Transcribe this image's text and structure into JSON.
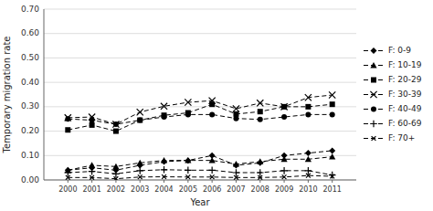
{
  "chart_data": {
    "type": "line",
    "x": [
      2000,
      2001,
      2002,
      2003,
      2004,
      2005,
      2006,
      2007,
      2008,
      2009,
      2010,
      2011
    ],
    "xlim": [
      1999,
      2012
    ],
    "xticks": [
      2000,
      2001,
      2002,
      2003,
      2004,
      2005,
      2006,
      2007,
      2008,
      2009,
      2010,
      2011
    ],
    "series": [
      {
        "name": "F: 0-9",
        "marker": "diamond",
        "values": [
          0.04,
          0.05,
          0.04,
          0.06,
          0.075,
          0.08,
          0.1,
          0.06,
          0.07,
          0.1,
          0.11,
          0.12
        ]
      },
      {
        "name": "F: 10-19",
        "marker": "triangle",
        "values": [
          0.04,
          0.06,
          0.055,
          0.07,
          0.08,
          0.08,
          0.08,
          0.065,
          0.075,
          0.085,
          0.085,
          0.095
        ]
      },
      {
        "name": "F: 20-29",
        "marker": "square",
        "values": [
          0.205,
          0.225,
          0.2,
          0.245,
          0.265,
          0.275,
          0.31,
          0.27,
          0.28,
          0.3,
          0.3,
          0.31
        ]
      },
      {
        "name": "F: 30-39",
        "marker": "x",
        "values": [
          0.255,
          0.258,
          0.228,
          0.278,
          0.302,
          0.318,
          0.325,
          0.292,
          0.315,
          0.3,
          0.338,
          0.348
        ]
      },
      {
        "name": "F: 40-49",
        "marker": "circle",
        "values": [
          0.25,
          0.245,
          0.228,
          0.245,
          0.258,
          0.268,
          0.268,
          0.252,
          0.248,
          0.258,
          0.268,
          0.268
        ]
      },
      {
        "name": "F: 60-69",
        "marker": "plus",
        "values": [
          0.03,
          0.035,
          0.025,
          0.038,
          0.042,
          0.04,
          0.04,
          0.03,
          0.03,
          0.038,
          0.038,
          0.02
        ]
      },
      {
        "name": "F: 70+",
        "marker": "small-x",
        "values": [
          0.01,
          0.01,
          0.005,
          0.012,
          0.013,
          0.012,
          0.012,
          0.01,
          0.01,
          0.012,
          0.018,
          0.015
        ]
      }
    ],
    "color": "#000000",
    "line_style": "dashed",
    "ylabel": "Temporary migration rate",
    "xlabel": "Year",
    "ylim": [
      0.0,
      0.7
    ],
    "yticks": [
      {
        "value": 0.0,
        "label": "0.00"
      },
      {
        "value": 0.1,
        "label": "0.10"
      },
      {
        "value": 0.2,
        "label": "0.20"
      },
      {
        "value": 0.3,
        "label": "0.30"
      },
      {
        "value": 0.4,
        "label": "0.40"
      },
      {
        "value": 0.5,
        "label": "0.50"
      },
      {
        "value": 0.6,
        "label": "0.60"
      },
      {
        "value": 0.7,
        "label": "0.70"
      }
    ],
    "grid": true,
    "legend": "right"
  }
}
